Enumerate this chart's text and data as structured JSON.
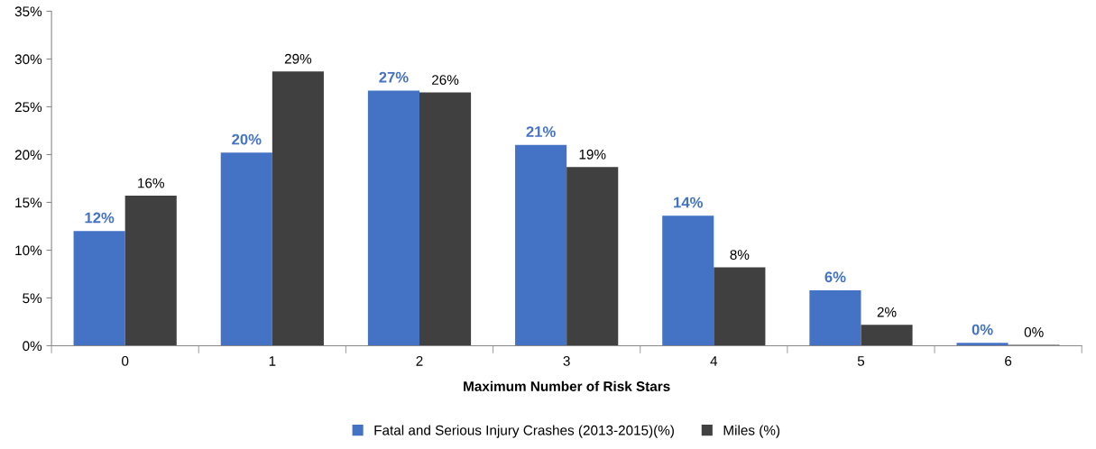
{
  "chart_data": {
    "type": "bar",
    "xlabel": "Maximum Number of Risk Stars",
    "categories": [
      "0",
      "1",
      "2",
      "3",
      "4",
      "5",
      "6"
    ],
    "series": [
      {
        "name": "Fatal and Serious Injury Crashes (2013-2015)(%)",
        "color": "#4472c4",
        "values": [
          12.0,
          20.2,
          26.7,
          21.0,
          13.6,
          5.8,
          0.3
        ],
        "value_labels": [
          "12%",
          "20%",
          "27%",
          "21%",
          "14%",
          "6%",
          "0%"
        ]
      },
      {
        "name": "Miles (%)",
        "color": "#404040",
        "values": [
          15.7,
          28.7,
          26.5,
          18.7,
          8.2,
          2.2,
          0.1
        ],
        "value_labels": [
          "16%",
          "29%",
          "26%",
          "19%",
          "8%",
          "2%",
          "0%"
        ]
      }
    ],
    "ylim": [
      0,
      35
    ],
    "yticks": [
      {
        "value": 0,
        "label": "0%"
      },
      {
        "value": 5,
        "label": "5%"
      },
      {
        "value": 10,
        "label": "10%"
      },
      {
        "value": 15,
        "label": "15%"
      },
      {
        "value": 20,
        "label": "20%"
      },
      {
        "value": 25,
        "label": "25%"
      },
      {
        "value": 30,
        "label": "30%"
      },
      {
        "value": 35,
        "label": "35%"
      }
    ],
    "grid": false,
    "legend": "bottom"
  }
}
